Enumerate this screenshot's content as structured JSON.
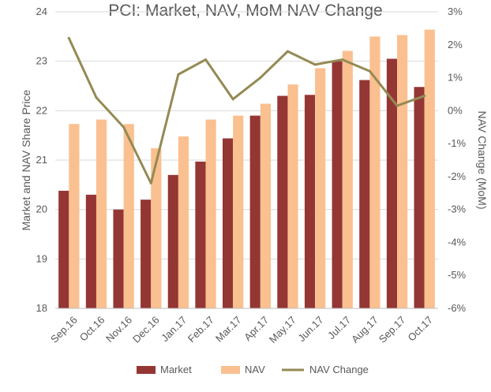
{
  "chart_data": {
    "type": "bar",
    "title": "PCI: Market, NAV,  MoM NAV Change",
    "categories": [
      "Sep.16",
      "Oct.16",
      "Nov.16",
      "Dec.16",
      "Jan.17",
      "Feb.17",
      "Mar.17",
      "Apr.17",
      "May.17",
      "Jun.17",
      "Jul.17",
      "Aug.17",
      "Sep.17",
      "Oct.17"
    ],
    "ylabel": "Market and NAV Share Price",
    "y2label": "NAV Change (MoM)",
    "ylim": [
      18,
      24
    ],
    "y2lim": [
      -6,
      3
    ],
    "yticks": [
      "18",
      "19",
      "20",
      "21",
      "22",
      "23",
      "24"
    ],
    "y2ticks": [
      "-6%",
      "-5%",
      "-4%",
      "-3%",
      "-2%",
      "-1%",
      "0%",
      "1%",
      "2%",
      "3%"
    ],
    "grid": true,
    "legend_position": "bottom",
    "series": [
      {
        "name": "Market",
        "type": "bar",
        "axis": "left",
        "color": "#943634",
        "values": [
          20.38,
          20.3,
          20.0,
          20.2,
          20.7,
          20.97,
          21.44,
          21.9,
          22.3,
          22.32,
          23.0,
          22.62,
          23.05,
          22.48
        ]
      },
      {
        "name": "NAV",
        "type": "bar",
        "axis": "left",
        "color": "#fac090",
        "values": [
          21.73,
          21.82,
          21.73,
          21.24,
          21.48,
          21.82,
          21.9,
          22.14,
          22.53,
          22.86,
          23.21,
          23.5,
          23.53,
          23.64
        ]
      },
      {
        "name": "NAV Change",
        "type": "line",
        "axis": "right",
        "color": "#948a54",
        "values": [
          2.2,
          0.4,
          -0.5,
          -2.2,
          1.1,
          1.55,
          0.35,
          1.0,
          1.8,
          1.4,
          1.55,
          1.2,
          0.15,
          0.45
        ]
      }
    ]
  }
}
